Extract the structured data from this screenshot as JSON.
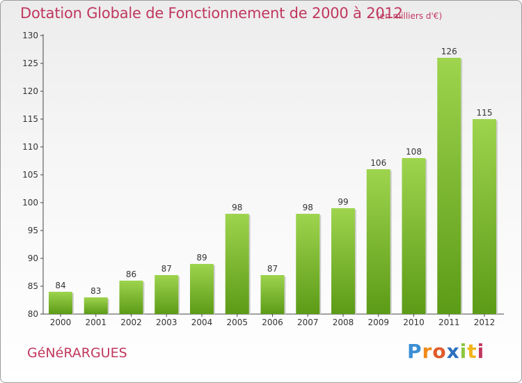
{
  "header": {
    "title": "Dotation Globale de Fonctionnement de 2000 à 2012",
    "unit": "(en milliers d'€)"
  },
  "footer": {
    "commune": "GéNéRARGUES",
    "brand": "Proxiti"
  },
  "colors": {
    "bar_light": "#9ed44e",
    "bar_dark": "#5c9b17",
    "accent": "#c0375e"
  },
  "chart_data": {
    "type": "bar",
    "title": "Dotation Globale de Fonctionnement de 2000 à 2012",
    "subtitle": "(en milliers d'€)",
    "xlabel": "",
    "ylabel": "",
    "categories": [
      "2000",
      "2001",
      "2002",
      "2003",
      "2004",
      "2005",
      "2006",
      "2007",
      "2008",
      "2009",
      "2010",
      "2011",
      "2012"
    ],
    "values": [
      84,
      83,
      86,
      87,
      89,
      98,
      87,
      98,
      99,
      106,
      108,
      126,
      115
    ],
    "ylim": [
      80,
      130
    ],
    "yticks": [
      80,
      85,
      90,
      95,
      100,
      105,
      110,
      115,
      120,
      125,
      130
    ],
    "grid": false
  }
}
